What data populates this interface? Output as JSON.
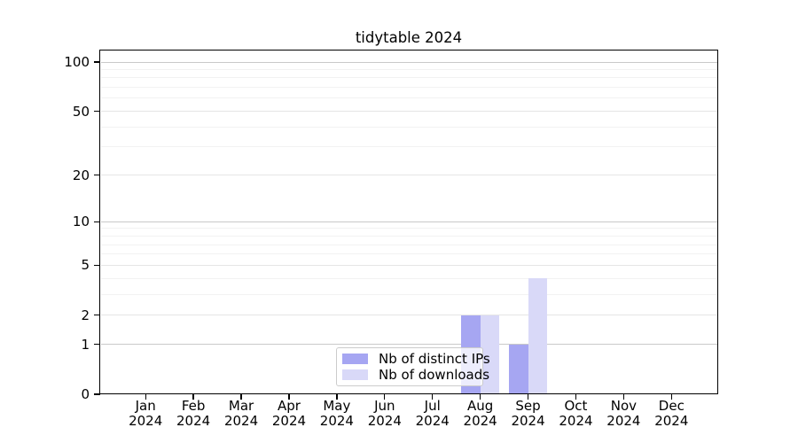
{
  "chart_data": {
    "type": "bar",
    "title": "tidytable 2024",
    "x_months": [
      "Jan",
      "Feb",
      "Mar",
      "Apr",
      "May",
      "Jun",
      "Jul",
      "Aug",
      "Sep",
      "Oct",
      "Nov",
      "Dec"
    ],
    "x_year": "2024",
    "series": [
      {
        "name": "Nb of distinct IPs",
        "color": "#a6a6f2",
        "values": [
          0,
          0,
          0,
          0,
          0,
          0,
          0,
          2,
          1,
          0,
          0,
          0
        ]
      },
      {
        "name": "Nb of downloads",
        "color": "#d9d9f8",
        "values": [
          0,
          0,
          0,
          0,
          0,
          0,
          0,
          2,
          4,
          0,
          0,
          0
        ]
      }
    ],
    "y_axis": {
      "scale": "log1p",
      "tick_values": [
        0,
        1,
        2,
        5,
        10,
        20,
        50,
        100
      ],
      "tick_labels": [
        "0",
        "1",
        "2",
        "5",
        "10",
        "20",
        "50",
        "100"
      ],
      "ylim": [
        0,
        116
      ],
      "major_grid_values": [
        1,
        10,
        100
      ],
      "mid_grid_values": [
        2,
        5,
        20,
        50
      ],
      "minor_grid_values": [
        3,
        4,
        6,
        7,
        8,
        9,
        30,
        40,
        60,
        70,
        80,
        90
      ]
    },
    "legend_position": "lower-center",
    "colors": {
      "grid_major": "#c9c9c9",
      "grid_mid": "#e5e5e5",
      "grid_minor": "#f2f2f2",
      "axis": "#000000",
      "text": "#000000",
      "background": "#ffffff"
    }
  }
}
